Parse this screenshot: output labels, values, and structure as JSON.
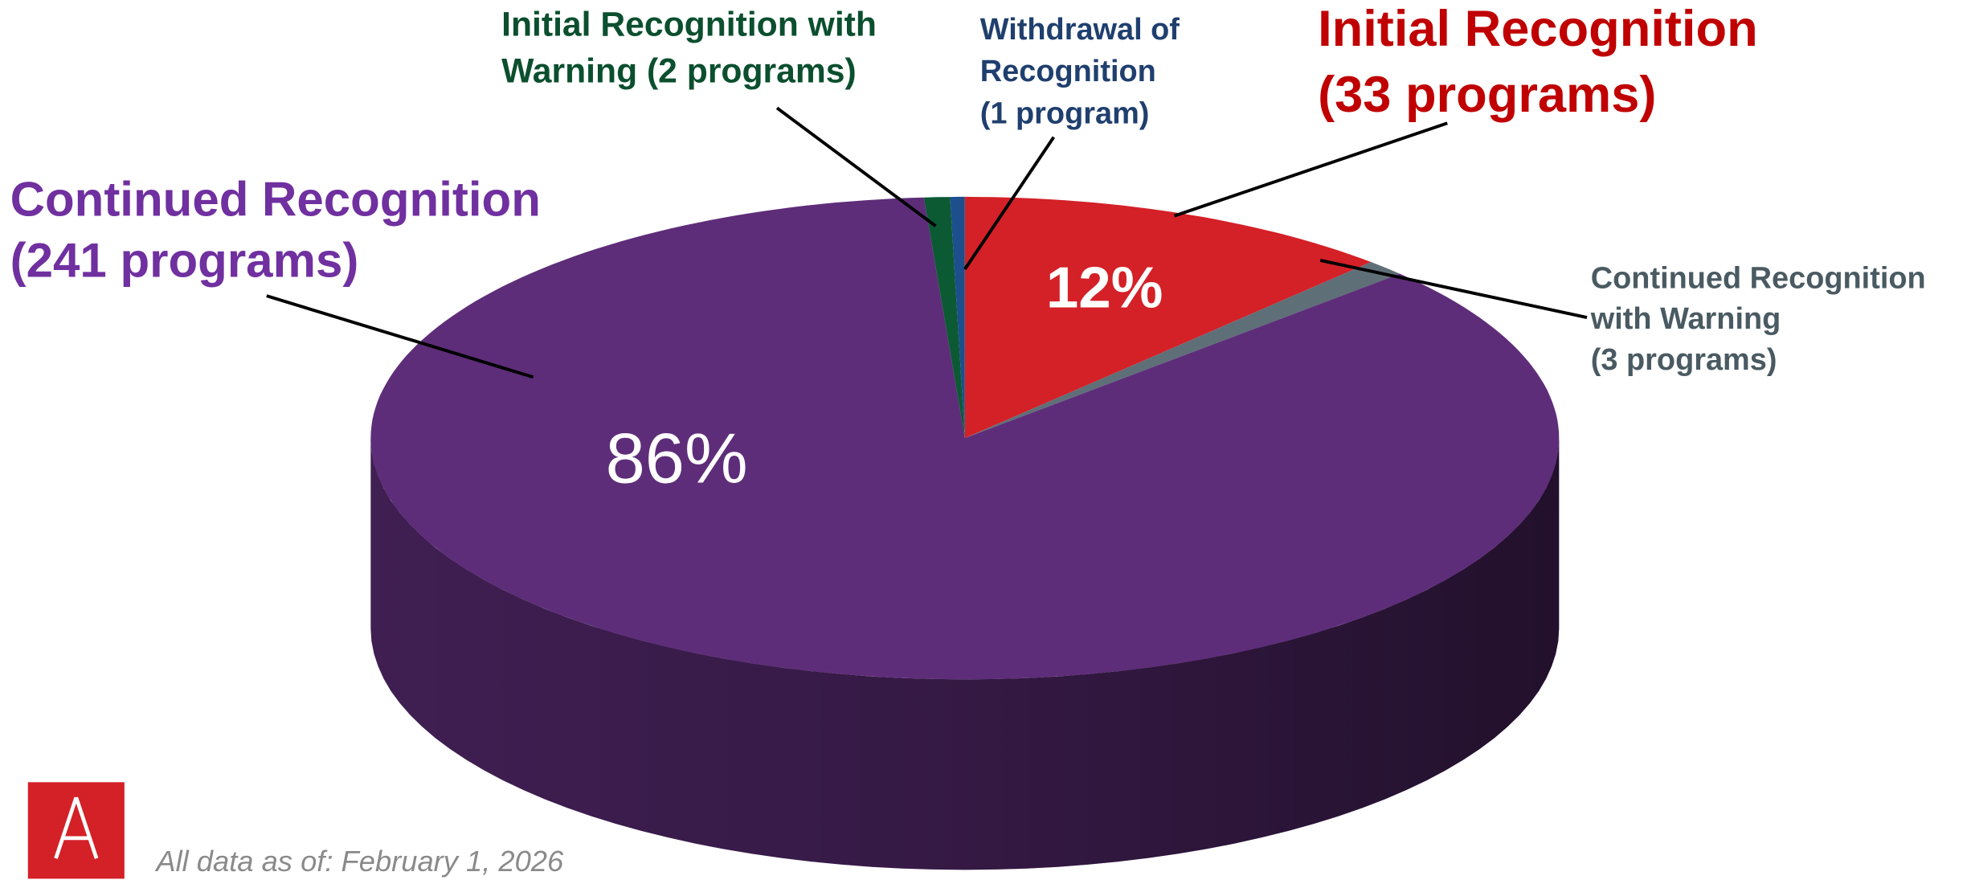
{
  "chart_data": {
    "type": "pie3d",
    "categories": [
      [
        "Initial Recognition",
        "(33 programs)"
      ],
      [
        "Continued Recognition",
        "with Warning",
        "(3 programs)"
      ],
      [
        "Continued Recognition",
        "(241 programs)"
      ],
      [
        "Initial Recognition with",
        "Warning  (2 programs)"
      ],
      [
        "Withdrawal of",
        "Recognition",
        "(1 program)"
      ]
    ],
    "values": [
      12,
      1.1,
      86,
      0.7,
      0.4
    ],
    "value_labels": [
      "12%",
      null,
      "86%",
      null,
      null
    ],
    "colors": [
      "#d42027",
      "#5f6f78",
      "#5e2d79",
      "#0b5a34",
      "#1c4f8c"
    ],
    "label_colors": [
      "#c00000",
      "#4a5a62",
      "#7030a0",
      "#0b4f2e",
      "#1f3f6e"
    ],
    "footnote": "All data as of: February 1, 2026"
  }
}
